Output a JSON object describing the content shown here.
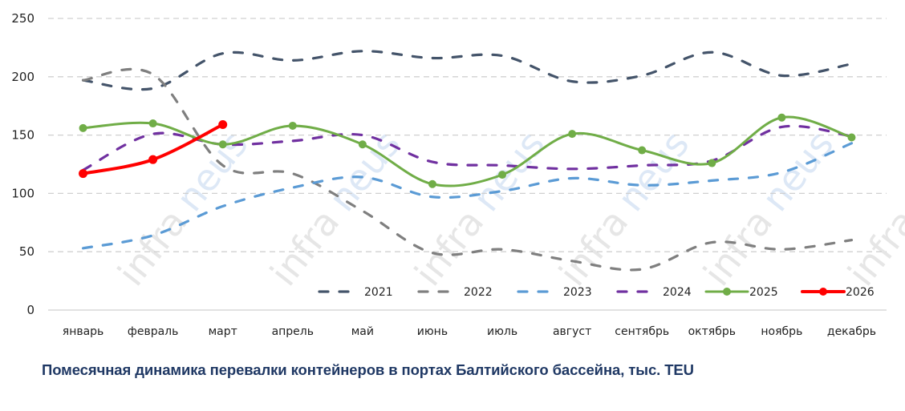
{
  "title": "Помесячная динамика перевалки контейнеров в портах Балтийского бассейна, тыс. TEU",
  "watermark": "infraneus",
  "chart_data": {
    "type": "line",
    "title": "Помесячная динамика перевалки контейнеров в портах Балтийского бассейна, тыс. TEU",
    "xlabel": "",
    "ylabel": "",
    "ylim": [
      0,
      250
    ],
    "yticks": [
      0,
      50,
      100,
      150,
      200,
      250
    ],
    "grid": true,
    "legend_position": "bottom-right inside",
    "categories": [
      "январь",
      "февраль",
      "март",
      "апрель",
      "май",
      "июнь",
      "июль",
      "август",
      "сентябрь",
      "октябрь",
      "ноябрь",
      "декабрь"
    ],
    "series": [
      {
        "name": "2021",
        "color": "#44546a",
        "style": "dashed",
        "markers": false,
        "values": [
          197,
          190,
          220,
          214,
          222,
          216,
          218,
          196,
          201,
          221,
          201,
          211
        ]
      },
      {
        "name": "2022",
        "color": "#7f7f7f",
        "style": "dashed",
        "markers": false,
        "values": [
          197,
          202,
          124,
          117,
          85,
          49,
          52,
          42,
          35,
          58,
          52,
          60
        ]
      },
      {
        "name": "2023",
        "color": "#5b9bd5",
        "style": "dashed",
        "markers": false,
        "values": [
          53,
          64,
          89,
          105,
          114,
          97,
          102,
          113,
          107,
          111,
          118,
          143
        ]
      },
      {
        "name": "2024",
        "color": "#7030a0",
        "style": "dashed",
        "markers": false,
        "values": [
          120,
          151,
          142,
          145,
          150,
          127,
          124,
          121,
          124,
          128,
          157,
          149
        ]
      },
      {
        "name": "2025",
        "color": "#70ad47",
        "style": "solid",
        "markers": true,
        "values": [
          156,
          160,
          142,
          158,
          142,
          108,
          116,
          151,
          137,
          126,
          165,
          148
        ]
      },
      {
        "name": "2026",
        "color": "#ff0000",
        "style": "solid",
        "markers": true,
        "values": [
          117,
          129,
          159
        ]
      }
    ]
  }
}
